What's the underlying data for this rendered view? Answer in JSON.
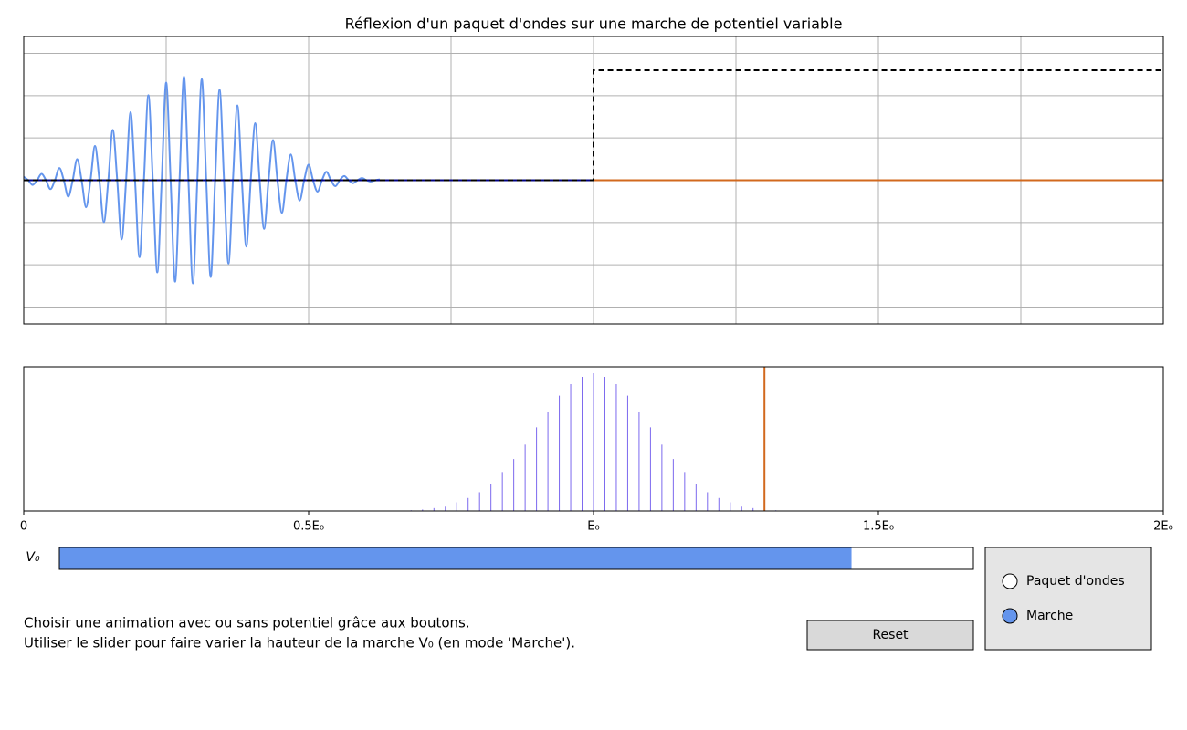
{
  "chart_data": [
    {
      "type": "line",
      "title": "Réflexion d'un paquet d'ondes sur une marche de potentiel variable",
      "xlim": [
        0,
        8
      ],
      "xticks": [
        1,
        2,
        3,
        4,
        5,
        6,
        7
      ],
      "ylim": [
        -3.4,
        3.4
      ],
      "yticks": [
        -3,
        -2,
        -1,
        0,
        1,
        2,
        3
      ],
      "grid": true,
      "series": [
        {
          "color": "#6495ed",
          "smooth": true,
          "x": [
            0,
            0.03125,
            0.0625,
            0.09375,
            0.125,
            0.15625,
            0.1875,
            0.21875,
            0.25,
            0.28125,
            0.3125,
            0.34375,
            0.375,
            0.40625,
            0.4375,
            0.46875,
            0.5,
            0.53125,
            0.5625,
            0.59375,
            0.625,
            0.65625,
            0.6875,
            0.71875,
            0.75,
            0.78125,
            0.8125,
            0.84375,
            0.875,
            0.90625,
            0.9375,
            0.96875,
            1,
            1.03125,
            1.0625,
            1.09375,
            1.125,
            1.15625,
            1.1875,
            1.21875,
            1.25,
            1.28125,
            1.3125,
            1.34375,
            1.375,
            1.40625,
            1.4375,
            1.46875,
            1.5,
            1.53125,
            1.5625,
            1.59375,
            1.625,
            1.65625,
            1.6875,
            1.71875,
            1.75,
            1.78125,
            1.8125,
            1.84375,
            1.875,
            1.90625,
            1.9375,
            1.96875,
            2,
            2.03125,
            2.0625,
            2.09375,
            2.125,
            2.15625,
            2.1875,
            2.21875,
            2.25,
            2.28125,
            2.3125,
            2.34375,
            2.375,
            2.40625,
            2.4375,
            2.46875,
            2.5
          ],
          "values": [
            0.08,
            0,
            -0.11,
            0,
            0.15,
            0,
            -0.21,
            0,
            0.29,
            0,
            -0.39,
            0,
            0.5,
            0,
            -0.64,
            0,
            0.81,
            0,
            -0.99,
            0,
            1.19,
            0,
            -1.4,
            0,
            1.61,
            0,
            -1.82,
            0,
            2.01,
            0,
            -2.18,
            0,
            2.31,
            0,
            -2.4,
            0,
            2.45,
            0,
            -2.44,
            0,
            2.39,
            0,
            -2.29,
            0,
            2.14,
            0,
            -1.97,
            0,
            1.77,
            0,
            -1.57,
            0,
            1.35,
            0,
            -1.15,
            0,
            0.95,
            0,
            -0.77,
            0,
            0.61,
            0,
            -0.48,
            0,
            0.37,
            0,
            -0.27,
            0,
            0.2,
            0,
            -0.14,
            0,
            0.1,
            0,
            -0.07,
            0,
            0.05,
            0,
            -0.03,
            0,
            0.02
          ]
        },
        {
          "color": "#000080",
          "x": [
            0,
            4
          ],
          "values": [
            0,
            0
          ]
        },
        {
          "color": "#d2691e",
          "x": [
            4,
            5,
            6,
            7,
            8
          ],
          "values": [
            0,
            0,
            0,
            0,
            0
          ]
        },
        {
          "color": "#000000",
          "dashed": true,
          "x": [
            0,
            4,
            4,
            8
          ],
          "values": [
            0,
            0,
            2.6,
            2.6
          ]
        }
      ]
    },
    {
      "type": "stem",
      "color": "#7b68ee",
      "xlim": [
        0,
        2
      ],
      "xticks": [
        0,
        {
          "value": 0.5,
          "label": "0.5E₀"
        },
        {
          "value": 1,
          "label": "E₀"
        },
        {
          "value": 1.5,
          "label": "1.5E₀"
        },
        {
          "value": 2,
          "label": "2E₀"
        }
      ],
      "ylim": [
        0,
        1
      ],
      "x": [
        0.66,
        0.68,
        0.7,
        0.72,
        0.74,
        0.76,
        0.78,
        0.8,
        0.82,
        0.84,
        0.86,
        0.88,
        0.9,
        0.92,
        0.94,
        0.96,
        0.98,
        1,
        1.02,
        1.04,
        1.06,
        1.08,
        1.1,
        1.12,
        1.14,
        1.16,
        1.18,
        1.2,
        1.22,
        1.24,
        1.26,
        1.28,
        1.3,
        1.32,
        1.34
      ],
      "values": [
        0.002,
        0.005,
        0.01,
        0.02,
        0.03,
        0.06,
        0.09,
        0.13,
        0.19,
        0.27,
        0.36,
        0.46,
        0.58,
        0.69,
        0.8,
        0.88,
        0.93,
        0.956,
        0.93,
        0.88,
        0.8,
        0.69,
        0.58,
        0.46,
        0.36,
        0.27,
        0.19,
        0.13,
        0.09,
        0.06,
        0.03,
        0.02,
        0.01,
        0.005,
        0.002
      ],
      "vline": {
        "value": 1.3,
        "color": "#d2691e"
      }
    }
  ],
  "slider": {
    "label": "V₀",
    "min": 0,
    "max": 1.5,
    "value": 1.3,
    "color": "#6495ed"
  },
  "instructions": [
    "Choisir une animation avec ou sans potentiel grâce aux boutons.",
    "Utiliser le slider pour faire varier la hauteur de la marche V₀ (en mode 'Marche')."
  ],
  "button": "Reset",
  "radio": {
    "options": [
      "Paquet d'ondes",
      "Marche"
    ],
    "selected": 1,
    "color": "#6495ed"
  }
}
